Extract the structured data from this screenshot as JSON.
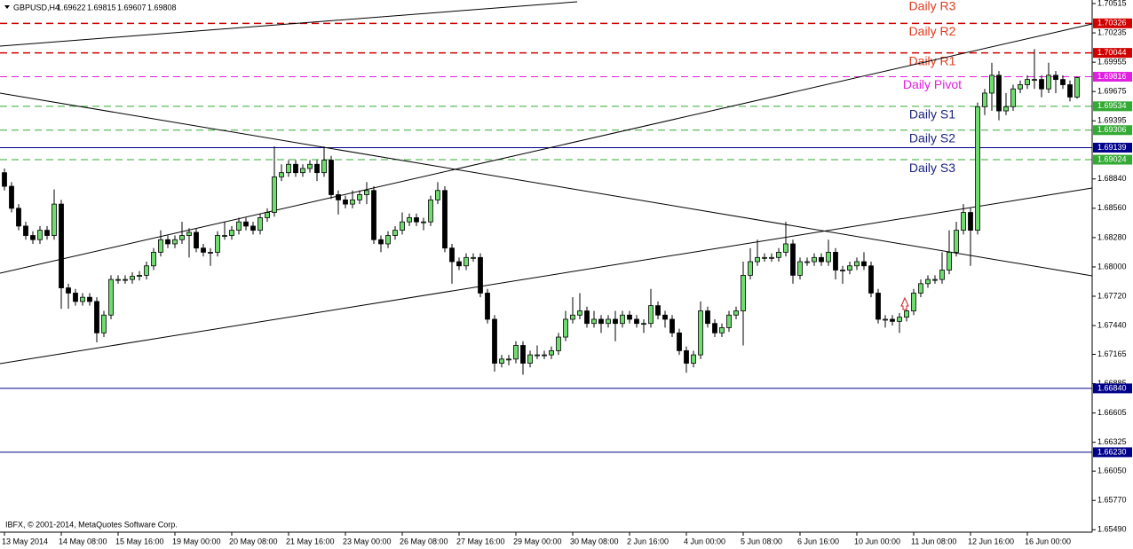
{
  "chart_data": {
    "type": "candlestick",
    "symbol": "GBPUSD,H4",
    "copyright": "IBFX, © 2001-2014, MetaQuotes Software Corp.",
    "categories": [
      "13 May 2014",
      null,
      null,
      null,
      null,
      null,
      null,
      null,
      "14 May 08:00",
      null,
      null,
      null,
      null,
      null,
      null,
      null,
      "15 May 16:00",
      null,
      null,
      null,
      null,
      null,
      null,
      null,
      "19 May 00:00",
      null,
      null,
      null,
      null,
      null,
      null,
      null,
      "20 May 08:00",
      null,
      null,
      null,
      null,
      null,
      null,
      null,
      "21 May 16:00",
      null,
      null,
      null,
      null,
      null,
      null,
      null,
      "23 May 00:00",
      null,
      null,
      null,
      null,
      null,
      null,
      null,
      "26 May 08:00",
      null,
      null,
      null,
      null,
      null,
      null,
      null,
      "27 May 16:00",
      null,
      null,
      null,
      null,
      null,
      null,
      null,
      "29 May 00:00",
      null,
      null,
      null,
      null,
      null,
      null,
      null,
      "30 May 08:00",
      null,
      null,
      null,
      null,
      null,
      null,
      null,
      "2 Jun 16:00",
      null,
      null,
      null,
      null,
      null,
      null,
      null,
      "4 Jun 00:00",
      null,
      null,
      null,
      null,
      null,
      null,
      null,
      "5 Jun 08:00",
      null,
      null,
      null,
      null,
      null,
      null,
      null,
      "6 Jun 16:00",
      null,
      null,
      null,
      null,
      null,
      null,
      null,
      "10 Jun 00:00",
      null,
      null,
      null,
      null,
      null,
      null,
      null,
      "11 Jun 08:00",
      null,
      null,
      null,
      null,
      null,
      null,
      null,
      "12 Jun 16:00",
      null,
      null,
      null,
      null,
      null,
      null,
      null,
      "16 Jun 00:00",
      null,
      null,
      null,
      null,
      null,
      null,
      null
    ],
    "open": [
      1.689,
      1.6877,
      1.6856,
      1.6839,
      1.683,
      1.6826,
      1.6835,
      1.683,
      1.686,
      1.678,
      1.6775,
      1.6767,
      1.6771,
      1.6767,
      1.6737,
      1.6754,
      1.6788,
      1.6788,
      1.6788,
      1.6791,
      1.6792,
      1.6801,
      1.6814,
      1.6826,
      1.6822,
      1.6826,
      1.683,
      1.6833,
      1.6818,
      1.6814,
      1.6814,
      1.683,
      1.683,
      1.6835,
      1.6843,
      1.6839,
      1.6835,
      1.6847,
      1.6852,
      1.6886,
      1.689,
      1.6898,
      1.689,
      1.6894,
      1.6898,
      1.689,
      1.6902,
      1.6869,
      1.6864,
      1.686,
      1.6864,
      1.6869,
      1.6873,
      1.6826,
      1.6822,
      1.683,
      1.6835,
      1.6843,
      1.6847,
      1.6843,
      1.6843,
      1.6864,
      1.6873,
      1.6818,
      1.6805,
      1.6801,
      1.6809,
      1.6809,
      1.6775,
      1.675,
      1.6708,
      1.6712,
      1.6712,
      1.6725,
      1.6708,
      1.6716,
      1.6716,
      1.6716,
      1.672,
      1.6733,
      1.675,
      1.6754,
      1.6758,
      1.6746,
      1.675,
      1.6746,
      1.675,
      1.6746,
      1.6754,
      1.675,
      1.6746,
      1.6746,
      1.6763,
      1.6754,
      1.675,
      1.6737,
      1.672,
      1.6708,
      1.6716,
      1.6758,
      1.6746,
      1.6737,
      1.6742,
      1.6754,
      1.6758,
      1.6792,
      1.6805,
      1.6809,
      1.6809,
      1.6809,
      1.6814,
      1.6822,
      1.6792,
      1.6805,
      1.6805,
      1.6809,
      1.6805,
      1.6814,
      1.6797,
      1.6797,
      1.6801,
      1.6805,
      1.6801,
      1.6775,
      1.675,
      1.675,
      1.6748,
      1.6752,
      1.6758,
      1.6775,
      1.6784,
      1.6788,
      1.6788,
      1.6797,
      1.6814,
      1.6835,
      1.6852,
      1.6835,
      1.6953,
      1.6966,
      1.6983,
      1.6949,
      1.6953,
      1.697,
      1.6974,
      1.6979,
      1.6979,
      1.697,
      1.6983,
      1.6979,
      1.6974,
      1.69622
    ],
    "high": [
      1.6894,
      1.6881,
      1.686,
      1.6843,
      1.6834,
      1.6839,
      1.6839,
      1.6874,
      1.6864,
      1.6784,
      1.6779,
      1.6775,
      1.6775,
      1.6771,
      1.6758,
      1.6792,
      1.6792,
      1.6792,
      1.6795,
      1.6796,
      1.6805,
      1.6818,
      1.6835,
      1.683,
      1.683,
      1.6843,
      1.6837,
      1.6837,
      1.6822,
      1.6818,
      1.6834,
      1.6843,
      1.6839,
      1.6847,
      1.6847,
      1.6843,
      1.6851,
      1.6856,
      1.6915,
      1.6898,
      1.6902,
      1.6902,
      1.6898,
      1.6902,
      1.6902,
      1.6915,
      1.6906,
      1.6873,
      1.6868,
      1.6873,
      1.6873,
      1.6881,
      1.6877,
      1.683,
      1.6834,
      1.6839,
      1.6852,
      1.6851,
      1.6851,
      1.6847,
      1.6868,
      1.6881,
      1.6877,
      1.6822,
      1.6809,
      1.6813,
      1.6813,
      1.6813,
      1.6779,
      1.6754,
      1.6716,
      1.6716,
      1.6729,
      1.6729,
      1.672,
      1.6725,
      1.672,
      1.6724,
      1.6737,
      1.6758,
      1.6771,
      1.6775,
      1.6762,
      1.6758,
      1.6754,
      1.6754,
      1.6758,
      1.6758,
      1.6758,
      1.6754,
      1.675,
      1.6779,
      1.6767,
      1.6758,
      1.6754,
      1.6741,
      1.6724,
      1.672,
      1.6767,
      1.6762,
      1.675,
      1.6746,
      1.6758,
      1.6762,
      1.6805,
      1.6818,
      1.6826,
      1.6813,
      1.6813,
      1.6818,
      1.6843,
      1.6826,
      1.6809,
      1.6809,
      1.6813,
      1.6813,
      1.6826,
      1.6818,
      1.6801,
      1.6805,
      1.6809,
      1.6814,
      1.6805,
      1.6779,
      1.6754,
      1.6754,
      1.6756,
      1.6767,
      1.6779,
      1.6788,
      1.6792,
      1.6792,
      1.6814,
      1.6835,
      1.6843,
      1.686,
      1.6856,
      1.6957,
      1.697,
      1.6995,
      1.6987,
      1.6966,
      1.6974,
      1.6978,
      1.6983,
      1.7008,
      1.6983,
      1.6995,
      1.6987,
      1.6983,
      1.6978,
      1.69815
    ],
    "low": [
      1.6873,
      1.6852,
      1.6835,
      1.6826,
      1.6822,
      1.6822,
      1.6826,
      1.6826,
      1.676,
      1.676,
      1.6763,
      1.6763,
      1.6763,
      1.6728,
      1.6733,
      1.675,
      1.6784,
      1.6784,
      1.6784,
      1.6787,
      1.6788,
      1.6797,
      1.681,
      1.6818,
      1.6818,
      1.6822,
      1.6809,
      1.6814,
      1.681,
      1.6801,
      1.681,
      1.6826,
      1.6826,
      1.6831,
      1.6835,
      1.6831,
      1.6831,
      1.6843,
      1.6848,
      1.6882,
      1.6886,
      1.6886,
      1.6886,
      1.689,
      1.6882,
      1.6886,
      1.6865,
      1.685,
      1.6856,
      1.6856,
      1.686,
      1.686,
      1.6822,
      1.6814,
      1.6818,
      1.6826,
      1.6831,
      1.6839,
      1.6839,
      1.6835,
      1.6839,
      1.686,
      1.6814,
      1.6784,
      1.6797,
      1.6797,
      1.6805,
      1.6771,
      1.6746,
      1.67,
      1.6704,
      1.6706,
      1.6708,
      1.6697,
      1.6704,
      1.6712,
      1.6712,
      1.6712,
      1.6716,
      1.6729,
      1.6746,
      1.675,
      1.6742,
      1.6742,
      1.6737,
      1.6742,
      1.6729,
      1.6742,
      1.6746,
      1.6742,
      1.6737,
      1.6742,
      1.675,
      1.6742,
      1.6733,
      1.6716,
      1.6699,
      1.6704,
      1.6712,
      1.6742,
      1.6733,
      1.6733,
      1.6738,
      1.675,
      1.6725,
      1.6788,
      1.6801,
      1.6805,
      1.6805,
      1.6805,
      1.681,
      1.6784,
      1.6788,
      1.6801,
      1.6801,
      1.6801,
      1.6801,
      1.6788,
      1.6784,
      1.6793,
      1.6797,
      1.6797,
      1.6771,
      1.6746,
      1.6742,
      1.6744,
      1.6737,
      1.6748,
      1.6754,
      1.6771,
      1.678,
      1.6784,
      1.6784,
      1.6793,
      1.681,
      1.6831,
      1.6801,
      1.6831,
      1.6945,
      1.6949,
      1.694,
      1.6945,
      1.6949,
      1.6966,
      1.697,
      1.697,
      1.6962,
      1.6966,
      1.6966,
      1.697,
      1.6958,
      1.69607
    ],
    "close": [
      1.6877,
      1.6856,
      1.6839,
      1.683,
      1.6826,
      1.6835,
      1.683,
      1.686,
      1.678,
      1.6775,
      1.6767,
      1.6771,
      1.6767,
      1.6737,
      1.6754,
      1.6788,
      1.6788,
      1.6788,
      1.6791,
      1.6792,
      1.6801,
      1.6814,
      1.6826,
      1.6822,
      1.6826,
      1.683,
      1.6833,
      1.6818,
      1.6814,
      1.6814,
      1.683,
      1.683,
      1.6835,
      1.6843,
      1.6839,
      1.6835,
      1.6847,
      1.6852,
      1.6886,
      1.689,
      1.6898,
      1.689,
      1.6894,
      1.6898,
      1.689,
      1.6902,
      1.6869,
      1.6864,
      1.686,
      1.6864,
      1.6869,
      1.6873,
      1.6826,
      1.6822,
      1.683,
      1.6835,
      1.6843,
      1.6847,
      1.6843,
      1.6843,
      1.6864,
      1.6873,
      1.6818,
      1.6805,
      1.6801,
      1.6809,
      1.6809,
      1.6775,
      1.675,
      1.6708,
      1.6712,
      1.6712,
      1.6725,
      1.6708,
      1.6716,
      1.6716,
      1.6716,
      1.672,
      1.6733,
      1.675,
      1.6754,
      1.6758,
      1.6746,
      1.675,
      1.6746,
      1.675,
      1.6746,
      1.6754,
      1.675,
      1.6746,
      1.6746,
      1.6763,
      1.6754,
      1.675,
      1.6737,
      1.672,
      1.6708,
      1.6716,
      1.6758,
      1.6746,
      1.6737,
      1.6742,
      1.6754,
      1.6758,
      1.6792,
      1.6805,
      1.6809,
      1.6809,
      1.6809,
      1.6814,
      1.6822,
      1.6792,
      1.6805,
      1.6805,
      1.6809,
      1.6805,
      1.6814,
      1.6797,
      1.6797,
      1.6801,
      1.6805,
      1.6801,
      1.6775,
      1.675,
      1.675,
      1.6748,
      1.6752,
      1.6758,
      1.6775,
      1.6784,
      1.6788,
      1.6788,
      1.6797,
      1.6814,
      1.6835,
      1.6852,
      1.6835,
      1.6953,
      1.6966,
      1.6983,
      1.6949,
      1.6953,
      1.697,
      1.6974,
      1.6979,
      1.6979,
      1.697,
      1.6983,
      1.6979,
      1.6974,
      1.69622,
      1.69808
    ],
    "up_color": "#6fdc6f",
    "down_color": "#000000",
    "ylim": [
      1.65467,
      1.70549
    ],
    "yticks": [
      1.70515,
      1.70235,
      1.69955,
      1.69675,
      1.69395,
      {
        "value": 1.6884,
        "label": "1.68840"
      },
      {
        "value": 1.6856,
        "label": "1.68560"
      },
      {
        "value": 1.6828,
        "label": "1.68280"
      },
      {
        "value": 1.68,
        "label": "1.68000"
      },
      {
        "value": 1.6772,
        "label": "1.67720"
      },
      {
        "value": 1.6744,
        "label": "1.67440"
      },
      1.67165,
      1.66885,
      1.66605,
      1.66325,
      {
        "value": 1.6605,
        "label": "1.66050"
      },
      {
        "value": 1.6577,
        "label": "1.65770"
      },
      {
        "value": 1.6549,
        "label": "1.65490"
      }
    ],
    "grid": false,
    "levels": [
      {
        "name": "Daily R2",
        "value": 1.70326,
        "color": "#d00000",
        "text_color": "#e03a1e",
        "style": "dashed"
      },
      {
        "name": "Daily R1",
        "value": 1.70044,
        "color": "#d00000",
        "text_color": "#e03a1e",
        "style": "dashed"
      },
      {
        "name": "Daily Pivot",
        "value": 1.69816,
        "color": "#e020e0",
        "text_color": "#e020e0",
        "style": "dashed"
      },
      {
        "name": "Daily S1",
        "value": 1.69534,
        "color": "#33aa33",
        "text_color": "#1a237e",
        "style": "dashed"
      },
      {
        "name": "Daily S2",
        "value": 1.69306,
        "color": "#33aa33",
        "text_color": "#1a237e",
        "style": "dashed"
      },
      {
        "value": 1.69139,
        "color": "#00008b",
        "style": "solid"
      },
      {
        "name": "Daily S3",
        "value": 1.69024,
        "color": "#33aa33",
        "text_color": "#1a237e",
        "style": "dashed"
      },
      {
        "value": 1.6684,
        "label": "1.66840",
        "color": "#00008b",
        "style": "solid"
      },
      {
        "value": 1.6623,
        "label": "1.66230",
        "color": "#00008b",
        "style": "solid"
      }
    ],
    "annotations": [
      {
        "text": "Daily R3",
        "color": "#e03a1e"
      }
    ]
  }
}
